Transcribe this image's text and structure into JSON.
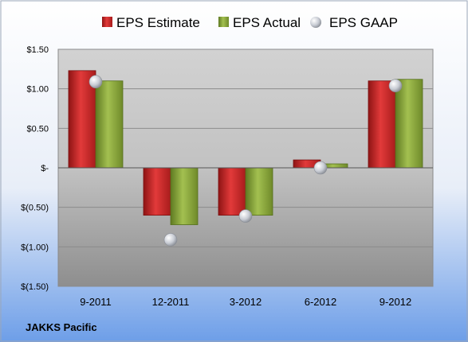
{
  "chart_data": {
    "type": "bar",
    "title": "",
    "company": "JAKKS Pacific",
    "categories": [
      "9-2011",
      "12-2011",
      "3-2012",
      "6-2012",
      "9-2012"
    ],
    "series": [
      {
        "name": "EPS Estimate",
        "kind": "bar",
        "color": "#cc2222",
        "values": [
          1.23,
          -0.6,
          -0.6,
          0.1,
          1.1
        ]
      },
      {
        "name": "EPS Actual",
        "kind": "bar",
        "color": "#8aa83c",
        "values": [
          1.1,
          -0.72,
          -0.6,
          0.05,
          1.12
        ]
      },
      {
        "name": "EPS GAAP",
        "kind": "marker",
        "color": "#b8bcc4",
        "values": [
          1.09,
          -0.91,
          -0.61,
          0.0,
          1.04
        ]
      }
    ],
    "ylim": [
      -1.5,
      1.5
    ],
    "yticks": [
      1.5,
      1.0,
      0.5,
      0,
      -0.5,
      -1.0,
      -1.5
    ],
    "ytick_labels": [
      "$1.50",
      "$1.00",
      "$0.50",
      "$-",
      "$(0.50)",
      "$(1.00)",
      "$(1.50)"
    ],
    "grid": true,
    "legend": "top"
  }
}
